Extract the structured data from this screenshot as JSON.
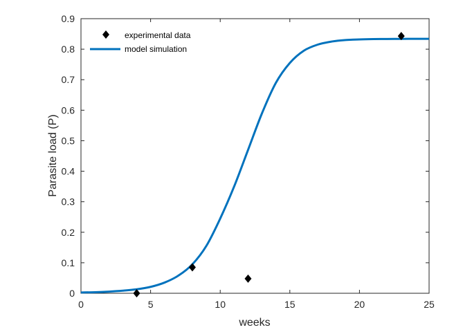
{
  "chart_data": {
    "type": "line",
    "title": "",
    "xlabel": "weeks",
    "ylabel": "Parasite load (P)",
    "xlim": [
      0,
      25
    ],
    "ylim": [
      0,
      0.9
    ],
    "xticks": [
      0,
      5,
      10,
      15,
      20,
      25
    ],
    "xtick_labels": [
      "0",
      "5",
      "10",
      "15",
      "20",
      "25"
    ],
    "yticks": [
      0,
      0.1,
      0.2,
      0.3,
      0.4,
      0.5,
      0.6,
      0.7,
      0.8,
      0.9
    ],
    "ytick_labels": [
      "0",
      "0.1",
      "0.2",
      "0.3",
      "0.4",
      "0.5",
      "0.6",
      "0.7",
      "0.8",
      "0.9"
    ],
    "grid": false,
    "legend_position": "top-left",
    "series": [
      {
        "name": "experimental data",
        "kind": "scatter",
        "marker": "diamond",
        "color": "#000000",
        "x": [
          4,
          8,
          12,
          23
        ],
        "y": [
          0.0,
          0.085,
          0.048,
          0.843
        ]
      },
      {
        "name": "model simulation",
        "kind": "line",
        "color": "#0072BD",
        "x": [
          0,
          1,
          2,
          3,
          4,
          5,
          6,
          7,
          8,
          9,
          10,
          11,
          12,
          13,
          14,
          15,
          16,
          17,
          18,
          19,
          20,
          21,
          22,
          23,
          24,
          25
        ],
        "y": [
          0.0025,
          0.0035,
          0.0055,
          0.0085,
          0.013,
          0.021,
          0.035,
          0.058,
          0.095,
          0.155,
          0.245,
          0.35,
          0.47,
          0.59,
          0.69,
          0.755,
          0.795,
          0.815,
          0.825,
          0.83,
          0.832,
          0.833,
          0.8335,
          0.8338,
          0.834,
          0.834
        ]
      }
    ]
  }
}
